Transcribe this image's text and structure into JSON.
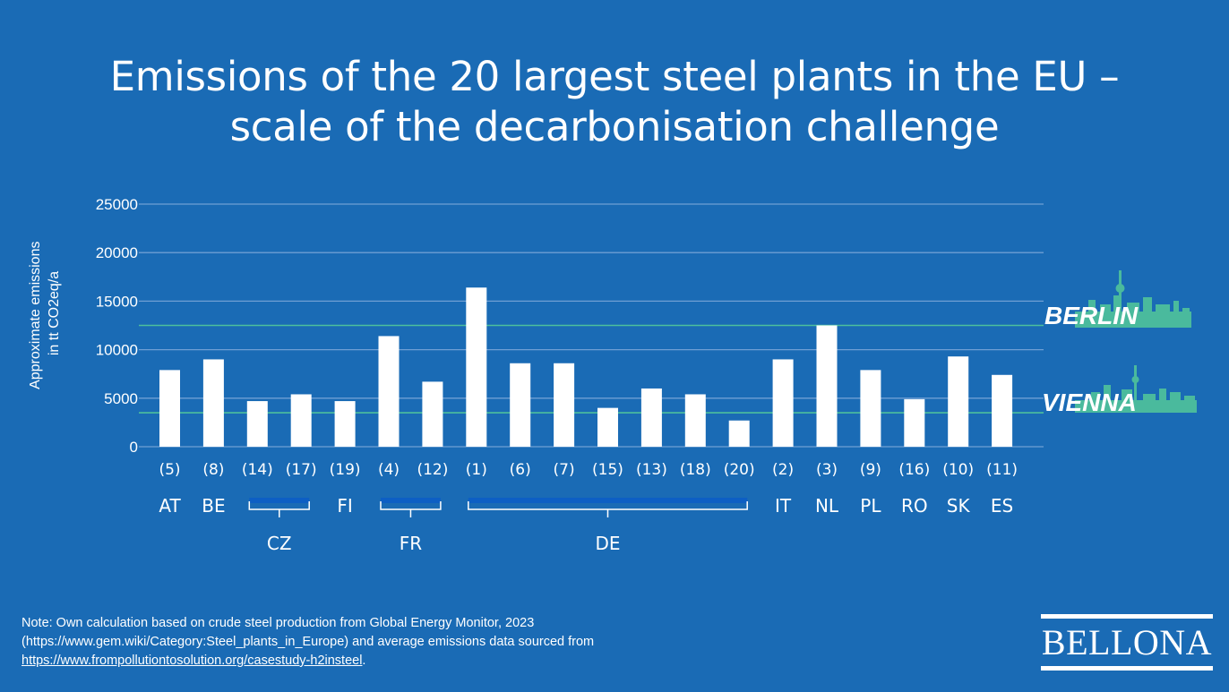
{
  "title": {
    "line1": "Emissions of the 20 largest steel plants in the EU –",
    "line2": "scale of the decarbonisation challenge"
  },
  "chart_data": {
    "type": "bar",
    "title": "Emissions of the 20 largest steel plants in the EU – scale of the decarbonisation challenge",
    "ylabel_line1": "Approximate emissions",
    "ylabel_line2": "in tt CO2eq/a",
    "xlabel": "",
    "ylim": [
      0,
      25000
    ],
    "yticks": [
      0,
      5000,
      10000,
      15000,
      20000,
      25000
    ],
    "categories": [
      "(5)",
      "(8)",
      "(14)",
      "(17)",
      "(19)",
      "(4)",
      "(12)",
      "(1)",
      "(6)",
      "(7)",
      "(15)",
      "(13)",
      "(18)",
      "(20)",
      "(2)",
      "(3)",
      "(9)",
      "(16)",
      "(10)",
      "(11)"
    ],
    "values": [
      7900,
      9000,
      4700,
      5400,
      4700,
      11400,
      6700,
      16400,
      8600,
      8600,
      4000,
      6000,
      5400,
      2700,
      9000,
      12500,
      7900,
      4900,
      9300,
      7400
    ],
    "groups": [
      {
        "label": "AT",
        "start": 0,
        "end": 0
      },
      {
        "label": "BE",
        "start": 1,
        "end": 1
      },
      {
        "label": "CZ",
        "start": 2,
        "end": 3
      },
      {
        "label": "FI",
        "start": 4,
        "end": 4
      },
      {
        "label": "FR",
        "start": 5,
        "end": 6
      },
      {
        "label": "DE",
        "start": 7,
        "end": 13
      },
      {
        "label": "IT",
        "start": 14,
        "end": 14
      },
      {
        "label": "NL",
        "start": 15,
        "end": 15
      },
      {
        "label": "PL",
        "start": 16,
        "end": 16
      },
      {
        "label": "RO",
        "start": 17,
        "end": 17
      },
      {
        "label": "SK",
        "start": 18,
        "end": 18
      },
      {
        "label": "ES",
        "start": 19,
        "end": 19
      }
    ],
    "reference_lines": [
      {
        "label": "BERLIN",
        "value": 12500
      },
      {
        "label": "VIENNA",
        "value": 3500
      }
    ],
    "grid": true
  },
  "note": {
    "line1": "Note: Own calculation based on crude steel production from Global Energy Monitor, 2023",
    "line2": "(https://www.gem.wiki/Category:Steel_plants_in_Europe) and average emissions data sourced from",
    "link": "https://www.frompollutiontosolution.org/casestudy-h2insteel",
    "link_suffix": "."
  },
  "logo": "BELLONA",
  "colors": {
    "background": "#1a6bb5",
    "bar": "#ffffff",
    "grid": "#6f9fd4",
    "reference": "#4dbf9c",
    "bracket_fill": "#0d5fc4"
  }
}
